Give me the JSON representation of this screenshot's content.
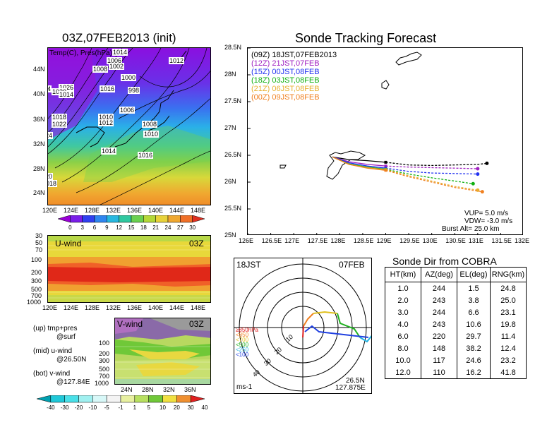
{
  "left_title": "03Z,07FEB2013 (init)",
  "right_title": "Sonde Tracking Forecast",
  "map_panel": {
    "label": "Temp(C), Pres(hPa)",
    "lat_ticks": [
      "44N",
      "40N",
      "36N",
      "32N",
      "28N",
      "24N"
    ],
    "lon_ticks": [
      "120E",
      "124E",
      "128E",
      "132E",
      "136E",
      "140E",
      "144E",
      "148E"
    ],
    "pressure_labels": [
      "1012",
      "1014",
      "1006",
      "1002",
      "1000",
      "1008",
      "1016",
      "998",
      "1026",
      "1030",
      "1034",
      "1014",
      "1018",
      "1022",
      "1024",
      "1010",
      "1012",
      "1006",
      "1008",
      "1010",
      "1012",
      "1014",
      "1016",
      "1026",
      "1020",
      "1018",
      "1016"
    ],
    "colorbar": {
      "ticks": [
        "0",
        "3",
        "6",
        "9",
        "12",
        "15",
        "18",
        "21",
        "24",
        "27",
        "30"
      ],
      "colors": [
        "#9a00d8",
        "#7a1ee8",
        "#3040f0",
        "#2f86f0",
        "#28b8e0",
        "#30c8a0",
        "#6ad050",
        "#b4d838",
        "#e8d23a",
        "#f0a830",
        "#f07028",
        "#e03020"
      ]
    }
  },
  "uwind_panel": {
    "label": "U-wind",
    "time": "03Z",
    "y_ticks": [
      "30",
      "50",
      "70",
      "100",
      "200",
      "300",
      "500",
      "700",
      "1000"
    ],
    "x_ticks": [
      "120E",
      "124E",
      "128E",
      "132E",
      "136E",
      "140E",
      "144E",
      "148E"
    ]
  },
  "vwind_panel": {
    "label": "V-wind",
    "time": "03Z",
    "y_ticks": [
      "100",
      "200",
      "300",
      "500",
      "700",
      "1000"
    ],
    "x_ticks": [
      "24N",
      "28N",
      "32N",
      "36N"
    ],
    "colorbar": {
      "ticks": [
        "-40",
        "-30",
        "-20",
        "-10",
        "-5",
        "-1",
        "1",
        "5",
        "10",
        "20",
        "30",
        "40"
      ],
      "colors": [
        "#00a0b0",
        "#20c8d8",
        "#4ae0e8",
        "#a0f0f0",
        "#d8f8f8",
        "#f4f4f4",
        "#e8f0a0",
        "#b8e060",
        "#70c838",
        "#f0e040",
        "#f09030",
        "#e02020"
      ]
    }
  },
  "notes": {
    "up": "(up) tmp+pres",
    "up2": "@surf",
    "mid": "(mid) u-wind",
    "mid2": "@26.50N",
    "bot": "(bot) v-wind",
    "bot2": "@127.84E"
  },
  "tracking": {
    "y_ticks": [
      "28.5N",
      "28N",
      "27.5N",
      "27N",
      "26.5N",
      "26N",
      "25.5N",
      "25N"
    ],
    "x_ticks": [
      "126E",
      "126.5E",
      "127E",
      "127.5E",
      "128E",
      "128.5E",
      "129E",
      "129.5E",
      "130E",
      "130.5E",
      "131E",
      "131.5E",
      "132E"
    ],
    "legend": [
      {
        "code": "(09Z)",
        "text": "18JST,07FEB2013",
        "color": "#000000"
      },
      {
        "code": "(12Z)",
        "text": "21JST,07FEB",
        "color": "#a020c0"
      },
      {
        "code": "(15Z)",
        "text": "00JST,08FEB",
        "color": "#2030f0"
      },
      {
        "code": "(18Z)",
        "text": "03JST,08FEB",
        "color": "#10b010"
      },
      {
        "code": "(21Z)",
        "text": "06JST,08FEB",
        "color": "#e8b030"
      },
      {
        "code": "(00Z)",
        "text": "09JST,08FEB",
        "color": "#f08020"
      }
    ],
    "vup": "VUP= 5.0 m/s",
    "vdw": "VDW= -3.0 m/s",
    "burst": "Burst Alt= 25.0 km"
  },
  "chart_data": {
    "type": "line",
    "title": "Sonde Tracking Forecast",
    "xlim": [
      126,
      132
    ],
    "ylim": [
      25,
      28.5
    ],
    "series": [
      {
        "name": "(09Z) 18JST,07FEB2013",
        "x": [
          127.84,
          128.2,
          128.6,
          129.0,
          129.5,
          130.0,
          130.5,
          131.0,
          131.2
        ],
        "y": [
          26.47,
          26.42,
          26.4,
          26.37,
          26.32,
          26.31,
          26.32,
          26.33,
          26.35
        ]
      },
      {
        "name": "(12Z) 21JST,07FEB",
        "x": [
          127.84,
          128.2,
          128.6,
          129.0,
          129.5,
          130.0,
          130.5,
          131.0
        ],
        "y": [
          26.47,
          26.38,
          26.33,
          26.3,
          26.28,
          26.27,
          26.26,
          26.25
        ]
      },
      {
        "name": "(15Z) 00JST,08FEB",
        "x": [
          127.84,
          128.2,
          128.6,
          129.0,
          129.5,
          130.0,
          130.5,
          131.0
        ],
        "y": [
          26.47,
          26.36,
          26.3,
          26.26,
          26.2,
          26.17,
          26.16,
          26.15
        ]
      },
      {
        "name": "(18Z) 03JST,08FEB",
        "x": [
          127.84,
          128.2,
          128.6,
          129.0,
          129.5,
          130.0,
          130.5,
          130.9
        ],
        "y": [
          26.47,
          26.34,
          26.28,
          26.24,
          26.15,
          26.08,
          26.02,
          25.97
        ]
      },
      {
        "name": "(21Z) 06JST,08FEB",
        "x": [
          127.84,
          128.2,
          128.6,
          129.0,
          129.5,
          130.0,
          130.5,
          131.0
        ],
        "y": [
          26.47,
          26.33,
          26.27,
          26.23,
          26.12,
          26.02,
          25.92,
          25.85
        ]
      },
      {
        "name": "(00Z) 09JST,08FEB",
        "x": [
          127.84,
          128.2,
          128.6,
          129.0,
          129.5,
          130.0,
          130.5,
          131.1
        ],
        "y": [
          26.47,
          26.33,
          26.26,
          26.22,
          26.1,
          26.0,
          25.9,
          25.82
        ]
      }
    ]
  },
  "polar": {
    "time": "18JST",
    "date": "07FEB",
    "pressure_legend": [
      {
        "text": "≥850hPa",
        "color": "#e02020"
      },
      {
        "text": "<850",
        "color": "#f08020"
      },
      {
        "text": "<700",
        "color": "#e0c020"
      },
      {
        "text": "<500",
        "color": "#20b020"
      },
      {
        "text": "<250",
        "color": "#20b0e0"
      },
      {
        "text": "<100",
        "color": "#2040e0"
      }
    ],
    "ring_labels": [
      "10",
      "20",
      "30",
      "40"
    ],
    "units": "ms-1",
    "lat": "26.5N",
    "lon": "127.875E"
  },
  "sonde_dir": {
    "title": "Sonde Dir from COBRA",
    "headers": [
      "HT(km)",
      "AZ(deg)",
      "EL(deg)",
      "RNG(km)"
    ],
    "rows": [
      [
        "1.0",
        "244",
        "1.5",
        "24.8"
      ],
      [
        "2.0",
        "243",
        "3.8",
        "25.0"
      ],
      [
        "3.0",
        "244",
        "6.6",
        "23.1"
      ],
      [
        "4.0",
        "243",
        "10.6",
        "19.8"
      ],
      [
        "6.0",
        "220",
        "29.7",
        "11.4"
      ],
      [
        "8.0",
        "148",
        "38.2",
        "12.4"
      ],
      [
        "10.0",
        "117",
        "24.6",
        "23.2"
      ],
      [
        "12.0",
        "110",
        "16.2",
        "41.8"
      ]
    ]
  }
}
